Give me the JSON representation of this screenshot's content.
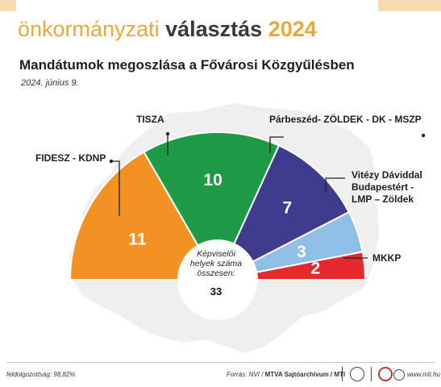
{
  "banner": {
    "title_light": "önkormányzati",
    "title_bold": "választás",
    "title_year": "2024"
  },
  "headline": "Mandátumok megoszlása a Fővárosi Közgyűlésben",
  "date": "2024. június 9.",
  "chart_data": {
    "type": "pie",
    "subtype": "parliament-half-donut",
    "title": "Mandátumok megoszlása a Fővárosi Közgyűlésben",
    "categories": [
      [
        "FIDESZ - KDNP"
      ],
      [
        "TISZA"
      ],
      [
        "Párbeszéd- ZÖLDEK - DK - MSZP"
      ],
      [
        "Vitézy Dáviddal",
        "Budapestért -",
        "LMP – Zöldek"
      ],
      [
        "MKKP"
      ]
    ],
    "values": [
      11,
      10,
      7,
      3,
      2
    ],
    "colors": [
      "#f39223",
      "#1f9a46",
      "#3f3b8f",
      "#8fbfe6",
      "#e42a2f"
    ],
    "center_label": [
      "Képviselői",
      "helyek száma",
      "összesen:"
    ],
    "total": 33
  },
  "footer": {
    "turnout": "feldolgozottság: 98,82%",
    "source_prefix": "Forrás: NVI /",
    "source_bold": "MTVA Sajtóarchívum / MTI",
    "url": "www.mti.hu"
  }
}
